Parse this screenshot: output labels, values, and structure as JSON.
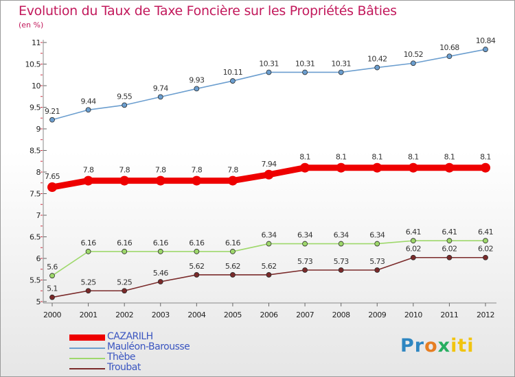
{
  "title": "Evolution du Taux de Taxe Foncière sur les Propriétés Bâties",
  "unit": "(en %)",
  "logo": [
    "Pr",
    "o",
    "x",
    "iti"
  ],
  "colors": {
    "title": "#c2185b",
    "legend_text": "#3a55c0"
  },
  "chart_data": {
    "type": "line",
    "title": "Evolution du Taux de Taxe Foncière sur les Propriétés Bâties",
    "ylabel": "(en %)",
    "xlabel": "",
    "ylim": [
      5,
      11
    ],
    "yticks": [
      "5",
      "5.5",
      "6",
      "6.5",
      "7",
      "7.5",
      "8",
      "8.5",
      "9",
      "9.5",
      "10",
      "10.5",
      "11"
    ],
    "x": [
      "2000",
      "2001",
      "2002",
      "2003",
      "2004",
      "2005",
      "2006",
      "2007",
      "2008",
      "2009",
      "2010",
      "2011",
      "2012"
    ],
    "grid": false,
    "legend": "bottom-left",
    "series": [
      {
        "name": "CAZARILH",
        "color": "#ee0000",
        "values": [
          7.65,
          7.8,
          7.8,
          7.8,
          7.8,
          7.8,
          7.94,
          8.1,
          8.1,
          8.1,
          8.1,
          8.1,
          8.1
        ],
        "labels": [
          "7.65",
          "7.8",
          "7.8",
          "7.8",
          "7.8",
          "7.8",
          "7.94",
          "8.1",
          "8.1",
          "8.1",
          "8.1",
          "8.1",
          "8.1"
        ]
      },
      {
        "name": "Mauléon-Barousse",
        "color": "#6b9ecf",
        "values": [
          9.21,
          9.44,
          9.55,
          9.74,
          9.93,
          10.11,
          10.31,
          10.31,
          10.31,
          10.42,
          10.52,
          10.68,
          10.84
        ],
        "labels": [
          "9.21",
          "9.44",
          "9.55",
          "9.74",
          "9.93",
          "10.11",
          "10.31",
          "10.31",
          "10.31",
          "10.42",
          "10.52",
          "10.68",
          "10.84"
        ]
      },
      {
        "name": "Thèbe",
        "color": "#9ed86b",
        "values": [
          5.6,
          6.16,
          6.16,
          6.16,
          6.16,
          6.16,
          6.34,
          6.34,
          6.34,
          6.34,
          6.41,
          6.41,
          6.41
        ],
        "labels": [
          "5.6",
          "6.16",
          "6.16",
          "6.16",
          "6.16",
          "6.16",
          "6.34",
          "6.34",
          "6.34",
          "6.34",
          "6.41",
          "6.41",
          "6.41"
        ]
      },
      {
        "name": "Troubat",
        "color": "#7a2a2a",
        "values": [
          5.1,
          5.25,
          5.25,
          5.46,
          5.62,
          5.62,
          5.62,
          5.73,
          5.73,
          5.73,
          6.02,
          6.02,
          6.02
        ],
        "labels": [
          "5.1",
          "5.25",
          "5.25",
          "5.46",
          "5.62",
          "5.62",
          "5.62",
          "5.73",
          "5.73",
          "5.73",
          "6.02",
          "6.02",
          "6.02"
        ]
      }
    ]
  }
}
